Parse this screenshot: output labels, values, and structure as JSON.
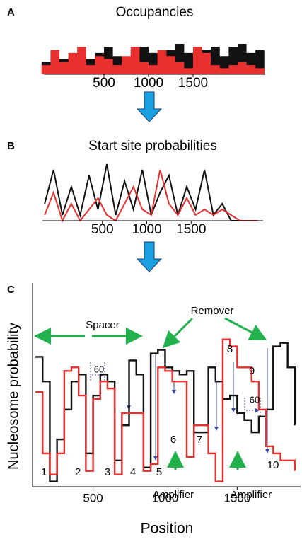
{
  "chart_data": [
    {
      "type": "area",
      "panel": "A",
      "title": "Occupancies",
      "x": [
        -150,
        -50,
        50,
        150,
        250,
        350,
        450,
        550,
        650,
        750,
        850,
        950,
        1050,
        1150,
        1250,
        1350,
        1450,
        1550,
        1650,
        1750,
        1850,
        1950,
        2050,
        2150,
        2250
      ],
      "series": [
        {
          "color": "#111111",
          "values": [
            0.4,
            0.7,
            0.5,
            0.6,
            0.8,
            0.5,
            0.7,
            0.9,
            0.6,
            0.5,
            0.8,
            0.9,
            0.7,
            0.6,
            0.8,
            1.0,
            0.7,
            0.6,
            0.8,
            0.9,
            0.6,
            0.9,
            1.0,
            0.7,
            0.8
          ]
        },
        {
          "color": "#e8312e",
          "values": [
            0.3,
            0.8,
            0.4,
            0.7,
            0.9,
            0.3,
            0.6,
            0.5,
            0.3,
            0.6,
            0.9,
            0.4,
            0.3,
            0.8,
            0.6,
            0.4,
            0.2,
            0.9,
            0.7,
            0.3,
            0.2,
            0.3,
            0.4,
            0.3,
            0.2
          ]
        }
      ],
      "xlim": [
        -175,
        2310
      ],
      "ylim": [
        0,
        1
      ],
      "xticks": [
        500,
        1000,
        1500
      ]
    },
    {
      "type": "line",
      "panel": "B",
      "title": "Start site probabilities",
      "x": [
        -150,
        -50,
        50,
        150,
        250,
        350,
        450,
        550,
        650,
        750,
        850,
        950,
        1050,
        1150,
        1250,
        1350,
        1450,
        1550,
        1650,
        1750,
        1850,
        1950,
        2050,
        2150,
        2250
      ],
      "series": [
        {
          "color": "#111111",
          "values": [
            0.3,
            0.9,
            0.1,
            0.6,
            0.1,
            0.8,
            0.2,
            1.0,
            0.1,
            0.7,
            0.2,
            0.9,
            0.1,
            0.5,
            0.8,
            0.1,
            0.6,
            0.2,
            0.9,
            0.1,
            0.3,
            0,
            0,
            0,
            0
          ]
        },
        {
          "color": "#e8312e",
          "values": [
            0.1,
            0.5,
            0,
            0.3,
            0,
            0.2,
            0.4,
            0.1,
            0,
            0.3,
            0.6,
            0.2,
            0.1,
            0.9,
            0.3,
            0.1,
            0.4,
            0.1,
            0.2,
            0.1,
            0.2,
            0.1,
            0,
            0,
            0
          ]
        }
      ],
      "xlim": [
        -175,
        2310
      ],
      "ylim": [
        0,
        1
      ],
      "xticks": [
        500,
        1000,
        1500
      ]
    },
    {
      "type": "step",
      "panel": "C",
      "x_label": "Position",
      "y_label": "Nucleosome probability",
      "x": [
        100,
        150,
        200,
        250,
        300,
        350,
        400,
        450,
        500,
        550,
        600,
        650,
        700,
        750,
        800,
        850,
        900,
        950,
        1000,
        1050,
        1100,
        1150,
        1200,
        1250,
        1300,
        1350,
        1400,
        1450,
        1500,
        1550,
        1600,
        1650,
        1700,
        1750,
        1800,
        1850,
        1900
      ],
      "series": [
        {
          "color": "#111111",
          "values": [
            0.74,
            0.6,
            0.03,
            0.27,
            0.44,
            0.6,
            0.64,
            0.19,
            0.52,
            0.64,
            0.6,
            0.15,
            0.35,
            0.72,
            0.64,
            0.11,
            0.76,
            0.78,
            0.68,
            0.66,
            0.64,
            0.66,
            0.31,
            0.31,
            0.68,
            0.6,
            0.5,
            0.52,
            0.42,
            0.38,
            0.31,
            0.4,
            0.44,
            0.8,
            0.82,
            0.68,
            0.35
          ]
        },
        {
          "color": "#e8312e",
          "values": [
            0.54,
            0.19,
            0.07,
            0.19,
            0.66,
            0.68,
            0.52,
            0.09,
            0.5,
            0.6,
            0.56,
            0.07,
            0.42,
            0.42,
            0.42,
            0.09,
            0.13,
            0.68,
            0.66,
            0.6,
            0.6,
            0.17,
            0.35,
            0.35,
            0.19,
            0.03,
            0.84,
            0.8,
            0.68,
            0.68,
            0.6,
            0.44,
            0.23,
            0.19,
            0.15,
            0.15,
            0.09
          ]
        }
      ],
      "xlim": [
        80,
        1940
      ],
      "ylim": [
        0,
        1
      ],
      "xticks": [
        500,
        1000,
        1500
      ],
      "annotations": [
        "Spacer",
        "Remover",
        "Amplifier",
        "Amplifier",
        "60",
        "60",
        "1",
        "2",
        "3",
        "4",
        "5",
        "6",
        "7",
        "8",
        "9",
        "10"
      ]
    }
  ]
}
